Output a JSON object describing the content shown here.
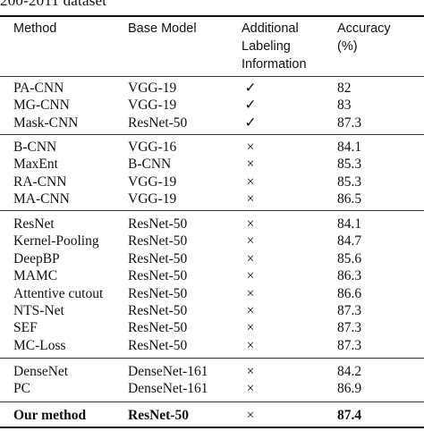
{
  "caption_fragment": "200-2011 dataset",
  "headers": {
    "method": "Method",
    "base_model": "Base Model",
    "additional_line1": "Additional",
    "additional_line2": "Labeling",
    "additional_line3": "Information",
    "accuracy_line1": "Accuracy",
    "accuracy_line2": "(%)"
  },
  "groups": [
    [
      {
        "method": "PA-CNN",
        "base": "VGG-19",
        "labels": "✓",
        "acc": "82"
      },
      {
        "method": "MG-CNN",
        "base": "VGG-19",
        "labels": "✓",
        "acc": "83"
      },
      {
        "method": "Mask-CNN",
        "base": "ResNet-50",
        "labels": "✓",
        "acc": "87.3"
      }
    ],
    [
      {
        "method": "B-CNN",
        "base": "VGG-16",
        "labels": "×",
        "acc": "84.1"
      },
      {
        "method": "MaxEnt",
        "base": "B-CNN",
        "labels": "×",
        "acc": "85.3"
      },
      {
        "method": "RA-CNN",
        "base": "VGG-19",
        "labels": "×",
        "acc": "85.3"
      },
      {
        "method": "MA-CNN",
        "base": "VGG-19",
        "labels": "×",
        "acc": "86.5"
      }
    ],
    [
      {
        "method": "ResNet",
        "base": "ResNet-50",
        "labels": "×",
        "acc": "84.1"
      },
      {
        "method": "Kernel-Pooling",
        "base": "ResNet-50",
        "labels": "×",
        "acc": "84.7"
      },
      {
        "method": "DeepBP",
        "base": "ResNet-50",
        "labels": "×",
        "acc": "85.6"
      },
      {
        "method": "MAMC",
        "base": "ResNet-50",
        "labels": "×",
        "acc": "86.3"
      },
      {
        "method": "Attentive cutout",
        "base": "ResNet-50",
        "labels": "×",
        "acc": "86.6"
      },
      {
        "method": "NTS-Net",
        "base": "ResNet-50",
        "labels": "×",
        "acc": "87.3"
      },
      {
        "method": "SEF",
        "base": "ResNet-50",
        "labels": "×",
        "acc": "87.3"
      },
      {
        "method": "MC-Loss",
        "base": "ResNet-50",
        "labels": "×",
        "acc": "87.3"
      }
    ],
    [
      {
        "method": "DenseNet",
        "base": "DenseNet-161",
        "labels": "×",
        "acc": "84.2"
      },
      {
        "method": "PC",
        "base": "DenseNet-161",
        "labels": "×",
        "acc": "86.9"
      }
    ]
  ],
  "final_row": {
    "method": "Our method",
    "base": "ResNet-50",
    "labels": "×",
    "acc": "87.4"
  }
}
